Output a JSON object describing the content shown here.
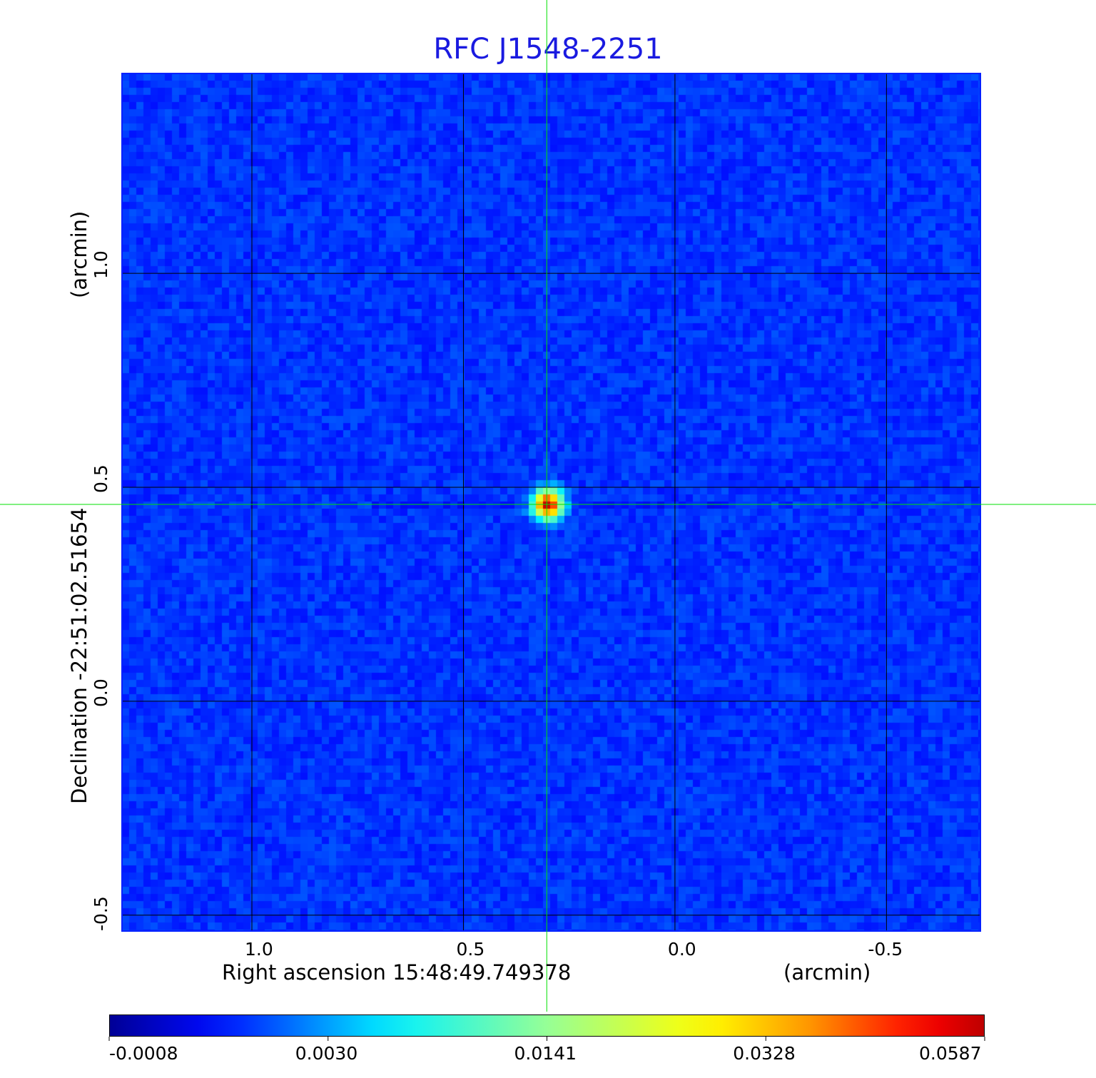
{
  "chart_data": {
    "type": "heatmap",
    "title": "RFC J1548-2251",
    "xlabel": "Right ascension  15:48:49.749378",
    "xunit": "(arcmin)",
    "ylabel": "Declination  -22:51:02.51654",
    "yunit": "(arcmin)",
    "xlim": [
      1.307,
      -0.722
    ],
    "ylim": [
      -0.537,
      1.467
    ],
    "xticks": [
      "1.0",
      "0.5",
      "0.0",
      "-0.5"
    ],
    "xtick_values": [
      1.0,
      0.5,
      0.0,
      -0.5
    ],
    "yticks": [
      "1.0",
      "0.5",
      "0.0",
      "-0.5"
    ],
    "ytick_values": [
      1.0,
      0.5,
      0.0,
      -0.5
    ],
    "grid": true,
    "crosshair": {
      "x": 0.303,
      "y": 0.46,
      "color": "#00e000"
    },
    "source": {
      "x": 0.3,
      "y": 0.46,
      "peak": 0.0587
    },
    "colormap": "jet",
    "colorbar": {
      "ticks": [
        "-0.0008",
        "0.0030",
        "0.0141",
        "0.0328",
        "0.0587"
      ],
      "min": -0.0008,
      "max": 0.0587,
      "placement": "bottom"
    },
    "colors": {
      "title": "#1a1ae0",
      "background_noise": "#1040f0"
    }
  }
}
